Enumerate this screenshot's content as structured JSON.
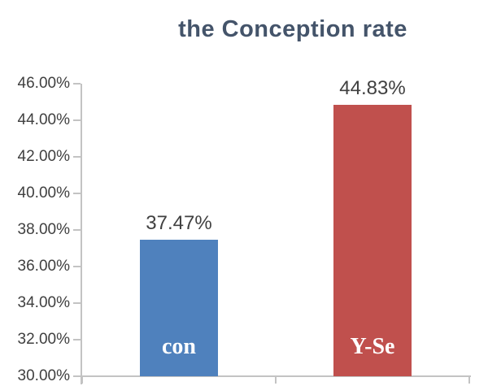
{
  "chart_data": {
    "type": "bar",
    "title": "the Conception rate",
    "categories": [
      "con",
      "Y-Se"
    ],
    "values": [
      37.47,
      44.83
    ],
    "value_labels": [
      "37.47%",
      "44.83%"
    ],
    "bar_colors": [
      "#4F81BD",
      "#C0504D"
    ],
    "ytick_labels": [
      "30.00%",
      "32.00%",
      "34.00%",
      "36.00%",
      "38.00%",
      "40.00%",
      "42.00%",
      "44.00%",
      "46.00%"
    ],
    "ylim": [
      30,
      46
    ],
    "ytick_step": 2,
    "xlabel": "",
    "ylabel": "",
    "grid": false,
    "legend": false,
    "colors": {
      "title": "#44546A",
      "axis": "#C3C3C3",
      "tick_label": "#3F3F3F",
      "value_label": "#404040",
      "category_label": "#FFFFFF",
      "background": "#FFFFFF"
    }
  }
}
